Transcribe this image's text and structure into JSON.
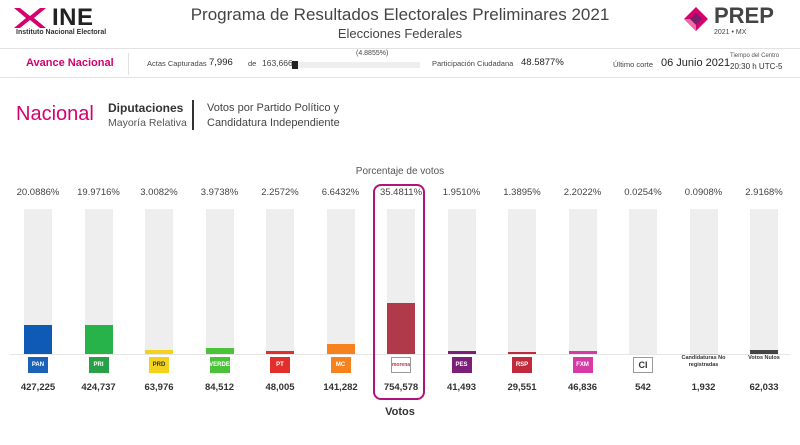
{
  "header": {
    "org_name": "INE",
    "org_subtitle": "Instituto Nacional Electoral",
    "title": "Programa de Resultados Electorales Preliminares 2021",
    "subtitle": "Elecciones Federales",
    "prep_name": "PREP",
    "prep_sub": "2021 • MX"
  },
  "status": {
    "avance_label": "Avance Nacional",
    "actas_label": "Actas Capturadas",
    "actas_count": "7,996",
    "actas_de": "de",
    "actas_total": "163,666",
    "actas_pct": "(4.8855%)",
    "actas_fraction": 0.048855,
    "participacion_label": "Participación Ciudadana",
    "participacion_value": "48.5877%",
    "corte_label": "Último corte",
    "corte_value": "06 Junio 2021",
    "tz_label": "Tiempo del Centro",
    "tz_value": "20:30 h UTC-5"
  },
  "section": {
    "scope": "Nacional",
    "title": "Diputaciones",
    "subtitle": "Mayoría Relativa",
    "description": "Votos por Partido Político y Candidatura Independiente"
  },
  "chart_data": {
    "type": "bar",
    "title": "Porcentaje de votos",
    "xlabel": "Votos",
    "ylabel": "",
    "ylim": [
      0,
      100
    ],
    "categories": [
      "PAN",
      "PRI",
      "PRD",
      "PVEM",
      "PT",
      "MC",
      "MORENA",
      "PES",
      "RSP",
      "FXM",
      "CI",
      "Candidaturas No registradas",
      "Votos Nulos"
    ],
    "percent_labels": [
      "20.0886%",
      "19.9716%",
      "3.0082%",
      "3.9738%",
      "2.2572%",
      "6.6432%",
      "35.4811%",
      "1.9510%",
      "1.3895%",
      "2.2022%",
      "0.0254%",
      "0.0908%",
      "2.9168%"
    ],
    "values": [
      20.0886,
      19.9716,
      3.0082,
      3.9738,
      2.2572,
      6.6432,
      35.4811,
      1.951,
      1.3895,
      2.2022,
      0.0254,
      0.0908,
      2.9168
    ],
    "votes": [
      "427,225",
      "424,737",
      "63,976",
      "84,512",
      "48,005",
      "141,282",
      "754,578",
      "41,493",
      "29,551",
      "46,836",
      "542",
      "1,932",
      "62,033"
    ],
    "colors": [
      "#0f5ab4",
      "#27b24a",
      "#f2d21c",
      "#4cc23a",
      "#e12f2b",
      "#f5821f",
      "#b03a4a",
      "#7b1f78",
      "#c12a3c",
      "#d63aa5",
      "#bbbbbb",
      "#bbbbbb",
      "#444444"
    ],
    "logos": [
      {
        "kind": "box",
        "text": "PAN",
        "bg": "#1a62b8"
      },
      {
        "kind": "box",
        "text": "PRI",
        "bg": "#27a048"
      },
      {
        "kind": "box",
        "text": "PRD",
        "bg": "#f2d21c"
      },
      {
        "kind": "box",
        "text": "VERDE",
        "bg": "#4cc23a"
      },
      {
        "kind": "box",
        "text": "PT",
        "bg": "#e12f2b"
      },
      {
        "kind": "box",
        "text": "MC",
        "bg": "#f5821f"
      },
      {
        "kind": "box",
        "text": "morena",
        "bg": "#ffffff"
      },
      {
        "kind": "box",
        "text": "PES",
        "bg": "#7b1f78"
      },
      {
        "kind": "box",
        "text": "RSP",
        "bg": "#c12a3c"
      },
      {
        "kind": "box",
        "text": "FXM",
        "bg": "#d63aa5"
      },
      {
        "kind": "box",
        "text": "CI",
        "bg": "#ffffff"
      },
      {
        "kind": "text",
        "text": "Candidaturas No registradas"
      },
      {
        "kind": "text",
        "text": "Votos Nulos"
      }
    ],
    "highlighted": "MORENA"
  }
}
